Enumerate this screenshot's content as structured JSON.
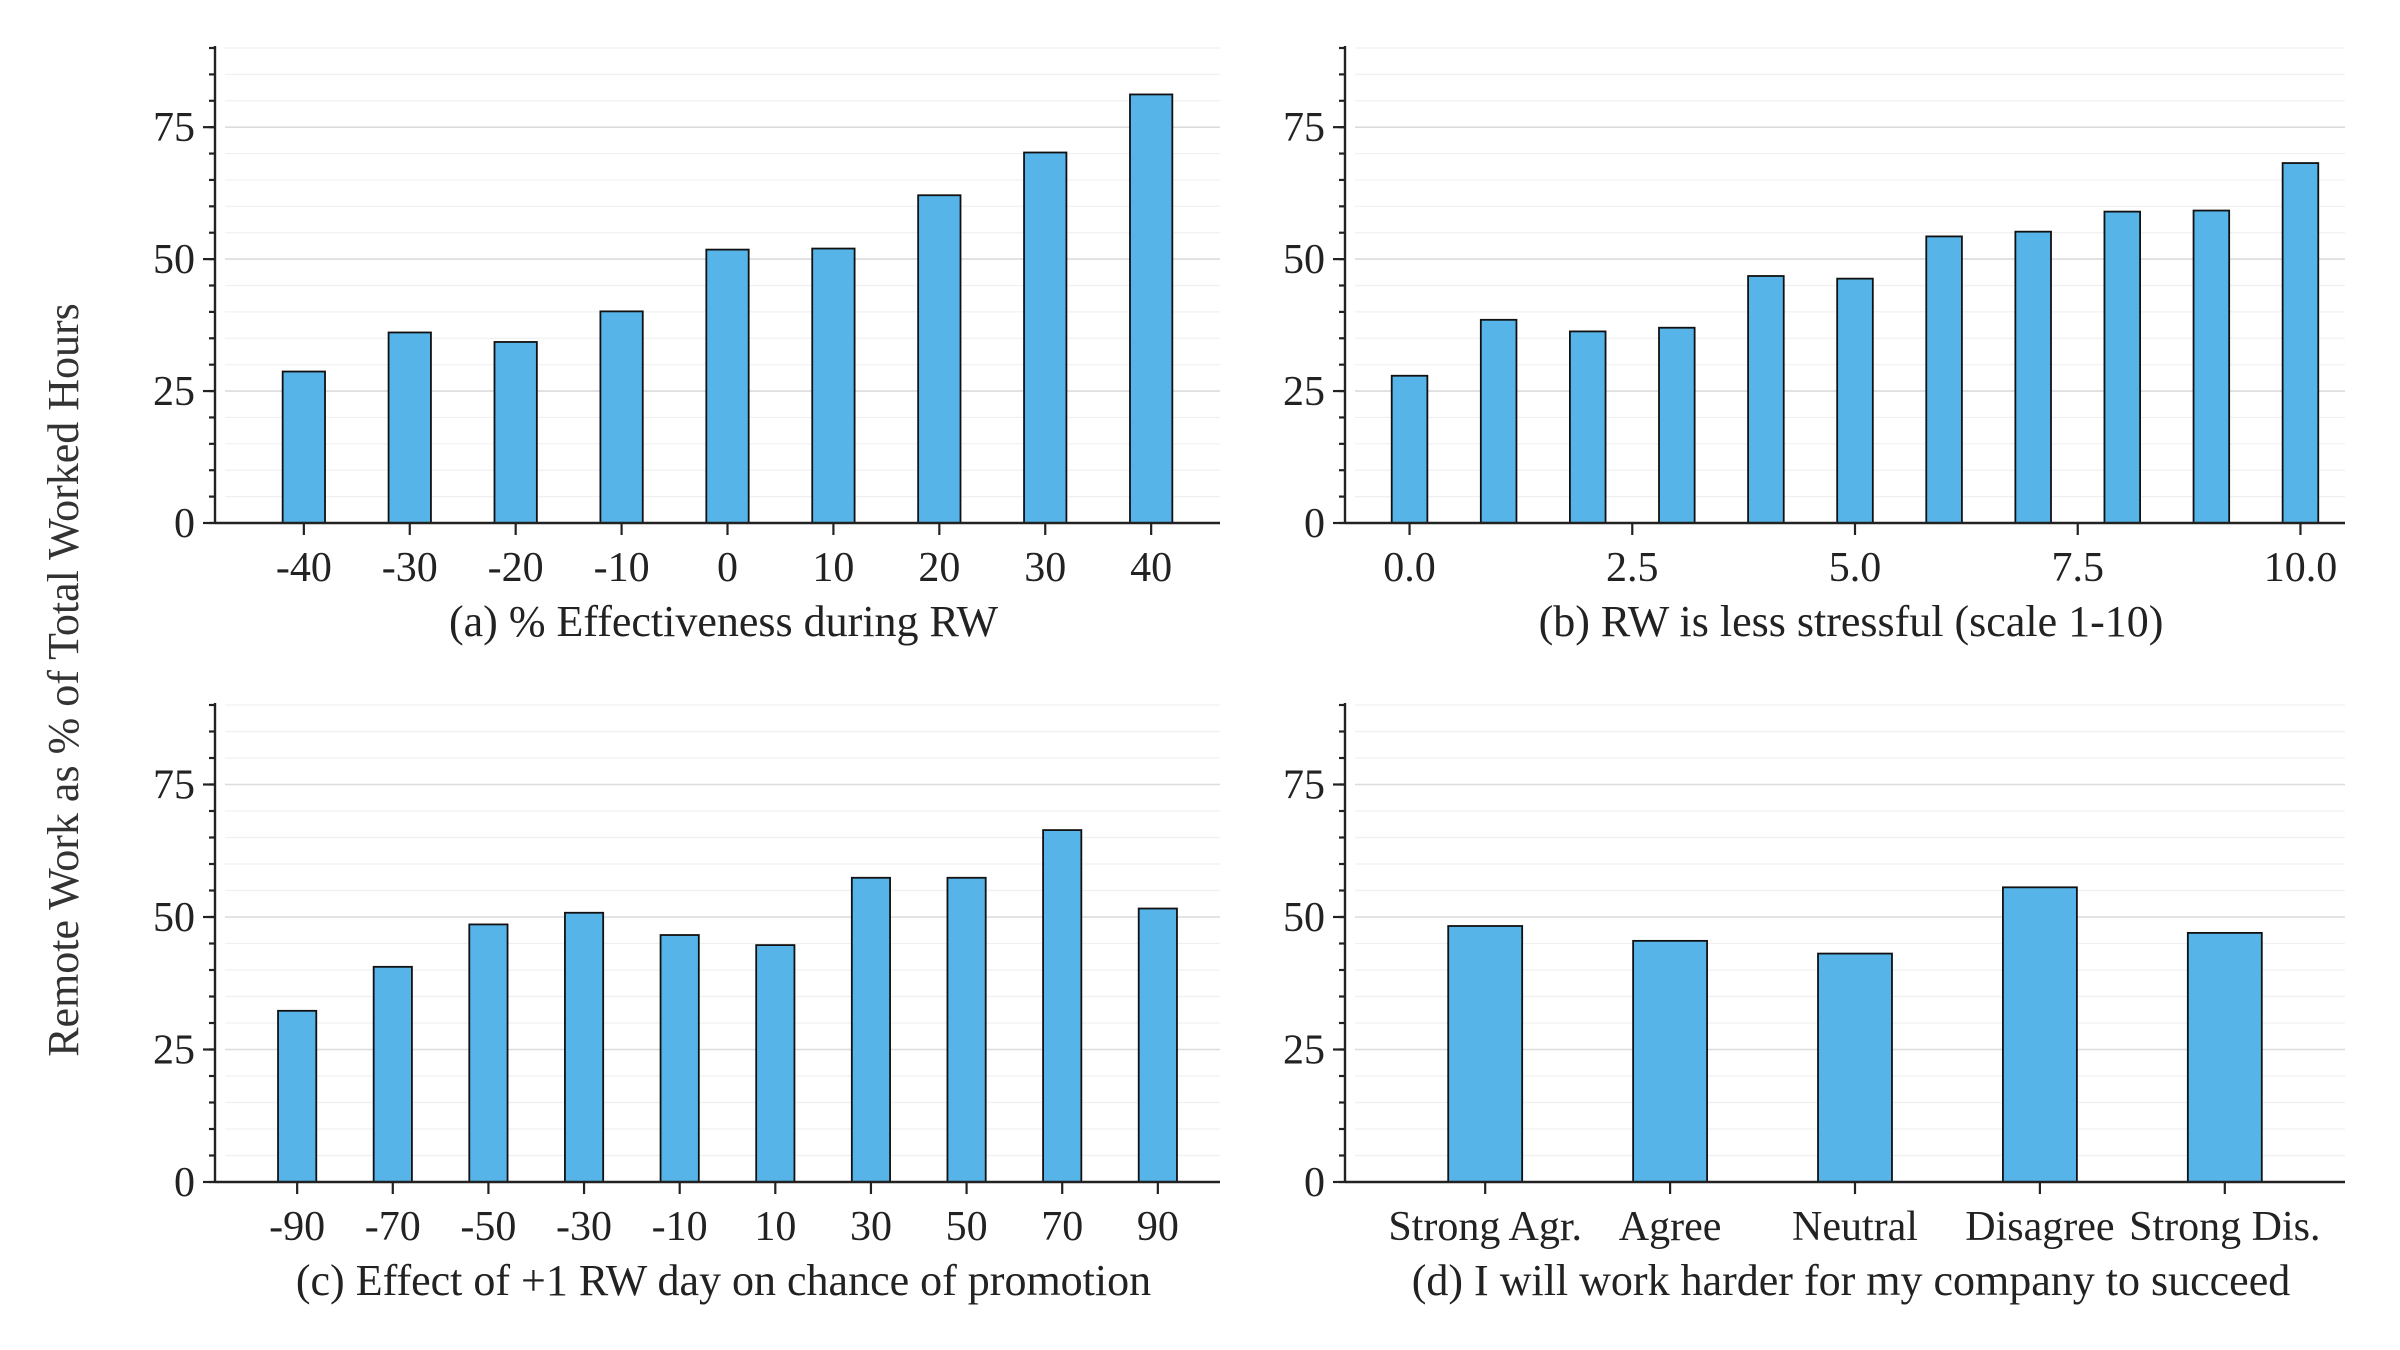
{
  "ylabel": "Remote Work as % of Total Worked Hours",
  "colors": {
    "bar_fill": "#56b4e9",
    "bar_edge": "#111111",
    "grid_major": "#dcdcdc",
    "grid_minor": "#f0f0f0",
    "text": "#222222"
  },
  "chart_data": [
    {
      "id": "a",
      "type": "bar",
      "title": "(a) % Effectiveness during RW",
      "xlabel": "(a) % Effectiveness during RW",
      "ylabel": "Remote Work as % of Total Worked Hours",
      "x_kind": "categorical",
      "categories": [
        "-40",
        "-30",
        "-20",
        "-10",
        "0",
        "10",
        "20",
        "30",
        "40"
      ],
      "values": [
        28.7,
        36.1,
        34.3,
        40.1,
        51.8,
        52.0,
        62.1,
        70.2,
        81.2
      ],
      "ylim": [
        0,
        90
      ],
      "yticks": [
        0,
        25,
        50,
        75
      ],
      "grid": true
    },
    {
      "id": "b",
      "type": "bar",
      "title": "(b) RW is less stressful (scale 1-10)",
      "xlabel": "(b) RW is less stressful (scale 1-10)",
      "ylabel": "Remote Work as % of Total Worked Hours",
      "x_kind": "numeric",
      "x": [
        0,
        1,
        2,
        3,
        4,
        5,
        6,
        7,
        8,
        9,
        10
      ],
      "values": [
        27.9,
        38.5,
        36.3,
        37.0,
        46.8,
        46.3,
        54.3,
        55.2,
        59.0,
        59.2,
        68.2
      ],
      "xlim": [
        -0.5,
        10.5
      ],
      "xticks": [
        0,
        2.5,
        5,
        7.5,
        10
      ],
      "xtick_labels": [
        "0.0",
        "2.5",
        "5.0",
        "7.5",
        "10.0"
      ],
      "ylim": [
        0,
        90
      ],
      "yticks": [
        0,
        25,
        50,
        75
      ],
      "grid": true
    },
    {
      "id": "c",
      "type": "bar",
      "title": "(c) Effect of +1 RW day on chance of promotion",
      "xlabel": "(c) Effect of +1 RW day on chance of promotion",
      "ylabel": "Remote Work as % of Total Worked Hours",
      "x_kind": "categorical",
      "categories": [
        "-90",
        "-70",
        "-50",
        "-30",
        "-10",
        "10",
        "30",
        "50",
        "70",
        "90"
      ],
      "values": [
        32.3,
        40.6,
        48.6,
        50.8,
        46.6,
        44.7,
        57.4,
        57.4,
        66.4,
        51.6
      ],
      "ylim": [
        0,
        90
      ],
      "yticks": [
        0,
        25,
        50,
        75
      ],
      "grid": true
    },
    {
      "id": "d",
      "type": "bar",
      "title": "(d) I will work harder for my company to succeed",
      "xlabel": "(d) I will work harder for my company to succeed",
      "ylabel": "Remote Work as % of Total Worked Hours",
      "x_kind": "categorical",
      "categories": [
        "Strong Agr.",
        "Agree",
        "Neutral",
        "Disagree",
        "Strong Dis."
      ],
      "values": [
        48.3,
        45.5,
        43.1,
        55.6,
        47.0
      ],
      "ylim": [
        0,
        90
      ],
      "yticks": [
        0,
        25,
        50,
        75
      ],
      "grid": true
    }
  ]
}
